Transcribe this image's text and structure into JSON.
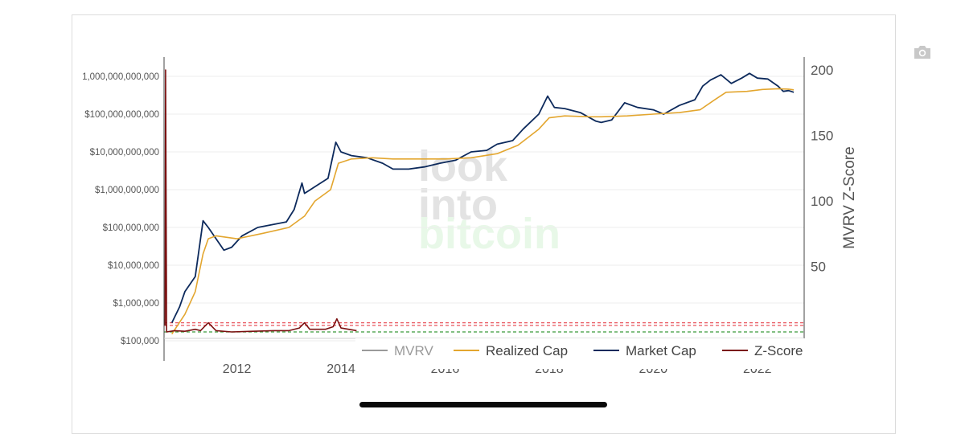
{
  "chart_data": {
    "type": "line",
    "watermark": [
      "look",
      "into",
      "bitcoin"
    ],
    "left_axis": {
      "scale": "log",
      "ticks": [
        100000,
        1000000,
        10000000,
        100000000,
        1000000000,
        10000000000,
        100000000000,
        1000000000000
      ],
      "tick_labels": [
        "$100,000",
        "$1,000,000",
        "$10,000,000",
        "$100,000,000",
        "$1,000,000,000",
        "$10,000,000,000",
        "$100,000,000,000",
        "1,000,000,000,000"
      ]
    },
    "right_axis": {
      "label": "MVRV Z-Score",
      "ticks": [
        50,
        100,
        150,
        200
      ],
      "tick_labels": [
        "50",
        "100",
        "150",
        "200"
      ]
    },
    "x_axis": {
      "ticks": [
        2012,
        2014,
        2016,
        2018,
        2020,
        2022
      ],
      "tick_labels": [
        "2012",
        "2014",
        "2016",
        "2018",
        "2020",
        "2022"
      ],
      "range": [
        2010.6,
        2022.9
      ]
    },
    "reference_lines": [
      {
        "axis": "right",
        "value": 7,
        "color": "#e8565e",
        "style": "dashed"
      },
      {
        "axis": "right",
        "value": 5,
        "color": "#e8565e",
        "style": "dashed"
      },
      {
        "axis": "right",
        "value": 0,
        "color": "#3a9a3a",
        "style": "dashed"
      }
    ],
    "legend": {
      "placement": "bottom-right",
      "items": [
        {
          "name": "MVRV",
          "color": "#9a9a9a"
        },
        {
          "name": "Realized Cap",
          "color": "#e3a62f"
        },
        {
          "name": "Market Cap",
          "color": "#0d2a5c"
        },
        {
          "name": "Z-Score",
          "color": "#7a1010"
        }
      ]
    },
    "series": [
      {
        "name": "Market Cap",
        "axis": "left",
        "color": "#0d2a5c",
        "x": [
          2010.75,
          2010.9,
          2011.0,
          2011.2,
          2011.35,
          2011.45,
          2011.6,
          2011.75,
          2011.9,
          2012.1,
          2012.4,
          2012.7,
          2012.95,
          2013.1,
          2013.25,
          2013.3,
          2013.5,
          2013.75,
          2013.9,
          2014.0,
          2014.2,
          2014.5,
          2014.8,
          2015.0,
          2015.3,
          2015.6,
          2015.9,
          2016.2,
          2016.5,
          2016.8,
          2017.0,
          2017.3,
          2017.5,
          2017.8,
          2017.97,
          2018.1,
          2018.3,
          2018.6,
          2018.9,
          2019.0,
          2019.2,
          2019.45,
          2019.7,
          2020.0,
          2020.2,
          2020.5,
          2020.8,
          2020.95,
          2021.1,
          2021.3,
          2021.5,
          2021.7,
          2021.85,
          2022.0,
          2022.2,
          2022.4,
          2022.5,
          2022.6,
          2022.7
        ],
        "y": [
          300000,
          800000,
          2000000,
          5000000,
          150000000,
          100000000,
          50000000,
          25000000,
          30000000,
          60000000,
          100000000,
          120000000,
          140000000,
          300000000,
          1500000000,
          800000000,
          1200000000,
          2000000000,
          18000000000,
          10000000000,
          8000000000,
          7000000000,
          5000000000,
          3500000000,
          3500000000,
          4000000000,
          5000000000,
          6000000000,
          10000000000,
          11000000000,
          16000000000,
          20000000000,
          40000000000,
          100000000000,
          300000000000,
          150000000000,
          140000000000,
          110000000000,
          65000000000,
          60000000000,
          70000000000,
          200000000000,
          150000000000,
          130000000000,
          100000000000,
          170000000000,
          240000000000,
          550000000000,
          800000000000,
          1100000000000,
          650000000000,
          900000000000,
          1200000000000,
          900000000000,
          850000000000,
          550000000000,
          400000000000,
          420000000000,
          380000000000
        ]
      },
      {
        "name": "Realized Cap",
        "axis": "left",
        "color": "#e3a62f",
        "x": [
          2010.75,
          2011.0,
          2011.2,
          2011.35,
          2011.45,
          2011.6,
          2012.0,
          2012.5,
          2013.0,
          2013.3,
          2013.5,
          2013.8,
          2013.95,
          2014.2,
          2014.6,
          2015.0,
          2015.5,
          2016.0,
          2016.5,
          2017.0,
          2017.4,
          2017.8,
          2018.0,
          2018.3,
          2018.8,
          2019.0,
          2019.5,
          2020.0,
          2020.5,
          2020.9,
          2021.2,
          2021.4,
          2021.8,
          2022.1,
          2022.4,
          2022.6,
          2022.7
        ],
        "y": [
          150000,
          500000,
          2000000,
          20000000,
          50000000,
          60000000,
          50000000,
          70000000,
          100000000,
          200000000,
          500000000,
          1000000000,
          5000000000,
          6500000000,
          7000000000,
          6500000000,
          6500000000,
          6500000000,
          7000000000,
          9000000000,
          15000000000,
          40000000000,
          80000000000,
          90000000000,
          85000000000,
          85000000000,
          90000000000,
          100000000000,
          110000000000,
          130000000000,
          250000000000,
          380000000000,
          400000000000,
          450000000000,
          470000000000,
          460000000000,
          440000000000
        ]
      },
      {
        "name": "Z-Score",
        "axis": "right",
        "color": "#7a1010",
        "x": [
          2010.62,
          2010.63,
          2010.65,
          2010.8,
          2011.0,
          2011.2,
          2011.3,
          2011.45,
          2011.6,
          2011.9,
          2012.3,
          2012.7,
          2013.0,
          2013.2,
          2013.3,
          2013.4,
          2013.7,
          2013.85,
          2013.92,
          2014.0,
          2014.3
        ],
        "y": [
          5,
          200,
          0,
          1,
          0.5,
          2,
          1,
          7,
          1,
          0,
          0.5,
          1,
          1,
          3,
          7,
          2,
          2,
          4,
          10,
          3,
          1
        ]
      }
    ]
  }
}
